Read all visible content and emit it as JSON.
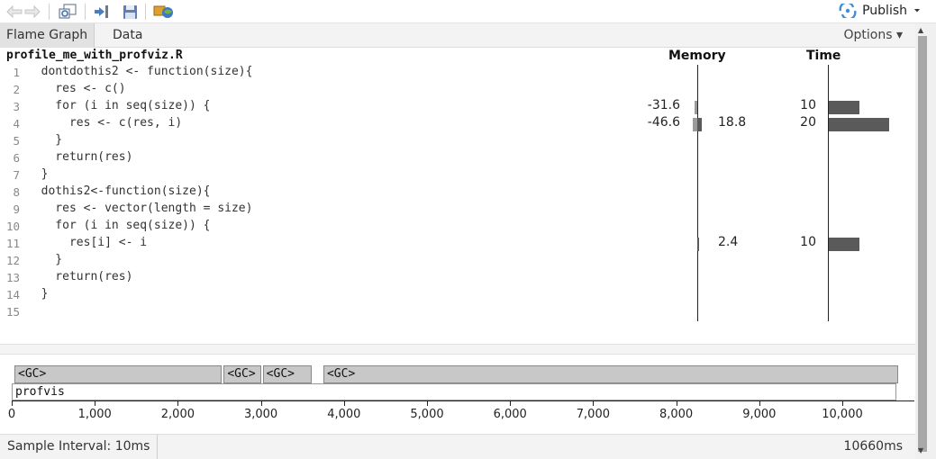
{
  "toolbar": {
    "buttons": [
      "back-icon",
      "forward-icon",
      "zoom-popout-icon",
      "load-profile-icon",
      "save-icon",
      "publish-to-rpubs-icon"
    ],
    "publish_label": "Publish"
  },
  "tabs": [
    {
      "label": "Flame Graph",
      "active": true
    },
    {
      "label": "Data",
      "active": false
    }
  ],
  "options_label": "Options ▾",
  "code_panel": {
    "file_name": "profile_me_with_profviz.R",
    "memory_header": "Memory",
    "time_header": "Time",
    "lines": [
      {
        "num": "1",
        "code": "  dontdothis2 <- function(size){",
        "mem_neg": "",
        "mem_pos": "",
        "time": "",
        "mem_neg_val": 0,
        "mem_pos_val": 0,
        "time_val": 0
      },
      {
        "num": "2",
        "code": "    res <- c()",
        "mem_neg": "",
        "mem_pos": "",
        "time": "",
        "mem_neg_val": 0,
        "mem_pos_val": 0,
        "time_val": 0
      },
      {
        "num": "3",
        "code": "    for (i in seq(size)) {",
        "mem_neg": "-31.6",
        "mem_pos": "",
        "time": "10",
        "mem_neg_val": -31.6,
        "mem_pos_val": 0,
        "time_val": 10
      },
      {
        "num": "4",
        "code": "      res <- c(res, i)",
        "mem_neg": "-46.6",
        "mem_pos": "18.8",
        "time": "20",
        "mem_neg_val": -46.6,
        "mem_pos_val": 18.8,
        "time_val": 20
      },
      {
        "num": "5",
        "code": "    }",
        "mem_neg": "",
        "mem_pos": "",
        "time": "",
        "mem_neg_val": 0,
        "mem_pos_val": 0,
        "time_val": 0
      },
      {
        "num": "6",
        "code": "    return(res)",
        "mem_neg": "",
        "mem_pos": "",
        "time": "",
        "mem_neg_val": 0,
        "mem_pos_val": 0,
        "time_val": 0
      },
      {
        "num": "7",
        "code": "  }",
        "mem_neg": "",
        "mem_pos": "",
        "time": "",
        "mem_neg_val": 0,
        "mem_pos_val": 0,
        "time_val": 0
      },
      {
        "num": "8",
        "code": "  dothis2<-function(size){",
        "mem_neg": "",
        "mem_pos": "",
        "time": "",
        "mem_neg_val": 0,
        "mem_pos_val": 0,
        "time_val": 0
      },
      {
        "num": "9",
        "code": "    res <- vector(length = size)",
        "mem_neg": "",
        "mem_pos": "",
        "time": "",
        "mem_neg_val": 0,
        "mem_pos_val": 0,
        "time_val": 0
      },
      {
        "num": "10",
        "code": "    for (i in seq(size)) {",
        "mem_neg": "",
        "mem_pos": "",
        "time": "",
        "mem_neg_val": 0,
        "mem_pos_val": 0,
        "time_val": 0
      },
      {
        "num": "11",
        "code": "      res[i] <- i",
        "mem_neg": "",
        "mem_pos": "2.4",
        "time": "10",
        "mem_neg_val": 0,
        "mem_pos_val": 2.4,
        "time_val": 10
      },
      {
        "num": "12",
        "code": "    }",
        "mem_neg": "",
        "mem_pos": "",
        "time": "",
        "mem_neg_val": 0,
        "mem_pos_val": 0,
        "time_val": 0
      },
      {
        "num": "13",
        "code": "    return(res)",
        "mem_neg": "",
        "mem_pos": "",
        "time": "",
        "mem_neg_val": 0,
        "mem_pos_val": 0,
        "time_val": 0
      },
      {
        "num": "14",
        "code": "  }",
        "mem_neg": "",
        "mem_pos": "",
        "time": "",
        "mem_neg_val": 0,
        "mem_pos_val": 0,
        "time_val": 0
      },
      {
        "num": "15",
        "code": "",
        "mem_neg": "",
        "mem_pos": "",
        "time": "",
        "mem_neg_val": 0,
        "mem_pos_val": 0,
        "time_val": 0
      }
    ]
  },
  "flame_graph": {
    "gc_blocks": [
      {
        "label": "<GC>",
        "start_ms": 0,
        "end_ms": 2520
      },
      {
        "label": "<GC>",
        "start_ms": 2520,
        "end_ms": 2990
      },
      {
        "label": "<GC>",
        "start_ms": 2990,
        "end_ms": 3600
      },
      {
        "label": "<GC>",
        "start_ms": 3720,
        "end_ms": 10660
      }
    ],
    "root_label": "profvis",
    "root_start_ms": 0,
    "root_end_ms": 10660,
    "ticks": [
      {
        "value": 0,
        "label": "0"
      },
      {
        "value": 1000,
        "label": "1,000"
      },
      {
        "value": 2000,
        "label": "2,000"
      },
      {
        "value": 3000,
        "label": "3,000"
      },
      {
        "value": 4000,
        "label": "4,000"
      },
      {
        "value": 5000,
        "label": "5,000"
      },
      {
        "value": 6000,
        "label": "6,000"
      },
      {
        "value": 7000,
        "label": "7,000"
      },
      {
        "value": 8000,
        "label": "8,000"
      },
      {
        "value": 9000,
        "label": "9,000"
      },
      {
        "value": 10000,
        "label": "10,000"
      }
    ]
  },
  "status": {
    "sample_interval": "Sample Interval: 10ms",
    "total_time": "10660ms"
  }
}
